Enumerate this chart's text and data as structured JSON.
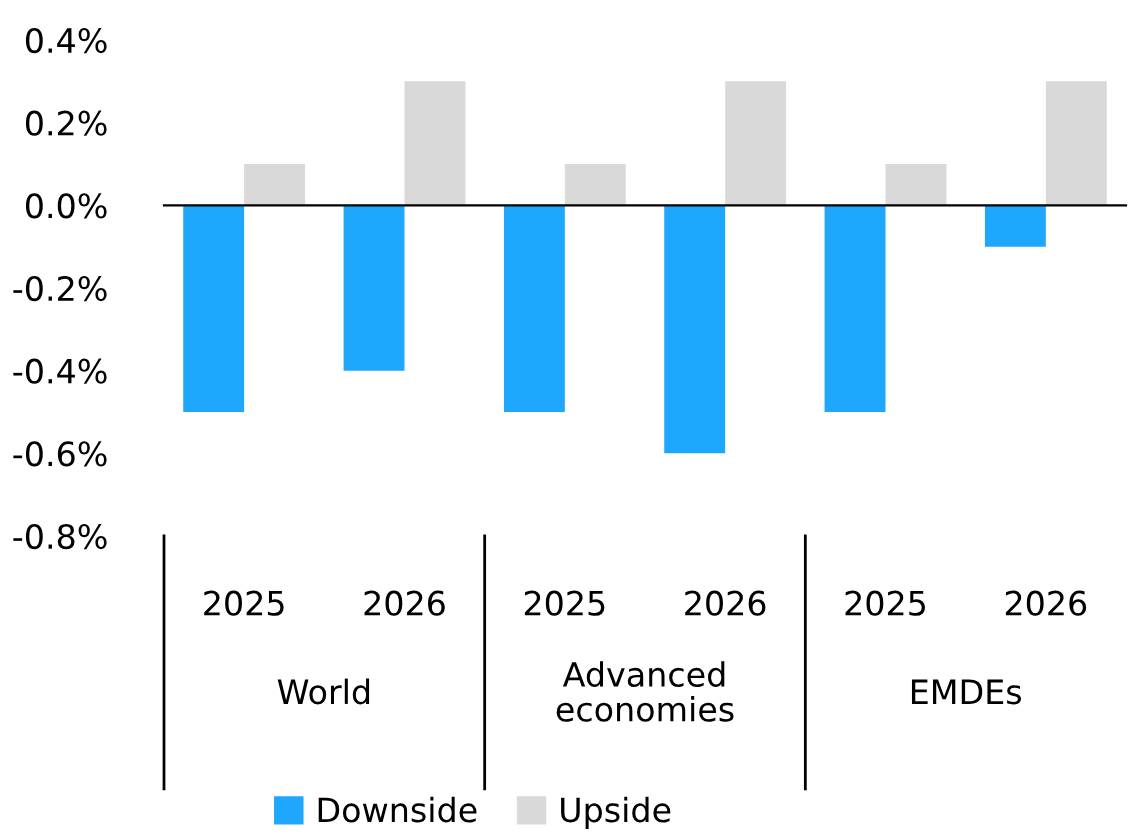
{
  "chart_data": {
    "type": "bar",
    "categories": [
      "2025",
      "2026",
      "2025",
      "2026",
      "2025",
      "2026"
    ],
    "annotations": [
      "World",
      "Advanced\neconomies",
      "EMDEs"
    ],
    "series": [
      {
        "name": "Downside",
        "color": "#1ea7fd",
        "values": [
          -0.5,
          -0.4,
          -0.5,
          -0.6,
          -0.5,
          -0.1
        ]
      },
      {
        "name": "Upside",
        "color": "#d9d9d9",
        "values": [
          0.1,
          0.3,
          0.1,
          0.3,
          0.1,
          0.3
        ]
      }
    ],
    "ylim": [
      -0.8,
      0.4
    ],
    "yticks": [
      {
        "value": -0.8,
        "label": "-0.8%"
      },
      {
        "value": -0.6,
        "label": "-0.6%"
      },
      {
        "value": -0.4,
        "label": "-0.4%"
      },
      {
        "value": -0.2,
        "label": "-0.2%"
      },
      {
        "value": 0.0,
        "label": "0.0%"
      },
      {
        "value": 0.2,
        "label": "0.2%"
      },
      {
        "value": 0.4,
        "label": "0.4%"
      }
    ],
    "legend": "bottom"
  }
}
